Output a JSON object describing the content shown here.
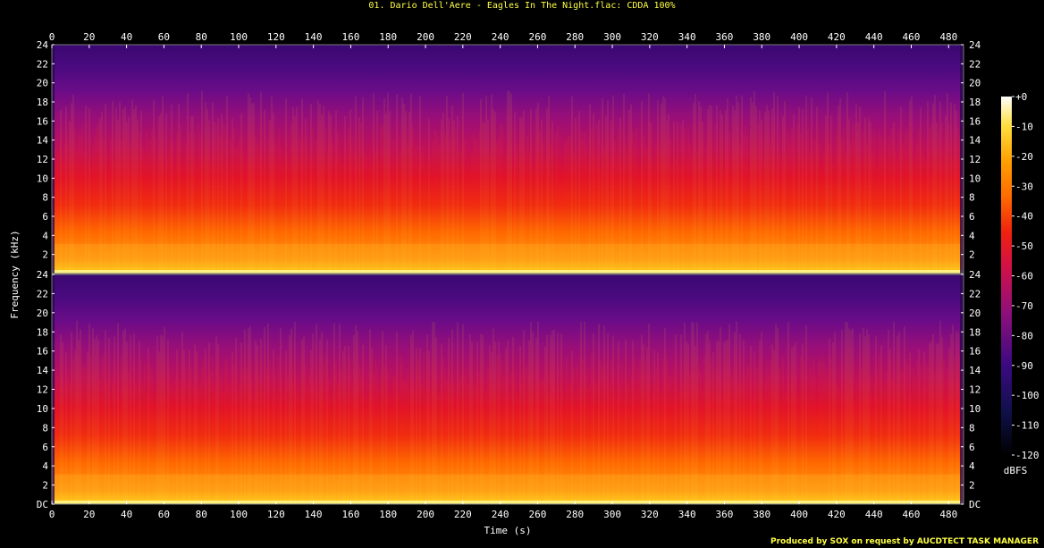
{
  "title": "01. Dario Dell'Aere - Eagles In The Night.flac: CDDA 100%",
  "footer": "Produced by SOX on request by AUCDTECT TASK MANAGER",
  "chart_data": {
    "type": "heatmap",
    "title": "01. Dario Dell'Aere - Eagles In The Night.flac: CDDA 100%",
    "xlabel": "Time (s)",
    "ylabel": "Frequency (kHz)",
    "xlim": [
      0,
      488
    ],
    "ylim": [
      0,
      24
    ],
    "x_ticks": [
      0,
      20,
      40,
      60,
      80,
      100,
      120,
      140,
      160,
      180,
      200,
      220,
      240,
      260,
      280,
      300,
      320,
      340,
      360,
      380,
      400,
      420,
      440,
      460,
      480
    ],
    "y_ticks": [
      "DC",
      "2",
      "4",
      "6",
      "8",
      "10",
      "12",
      "14",
      "16",
      "18",
      "20",
      "22",
      "24"
    ],
    "channels": 2,
    "colorbar": {
      "label": "dBFS",
      "ticks": [
        "+0",
        "-10",
        "-20",
        "-30",
        "-40",
        "-50",
        "-60",
        "-70",
        "-80",
        "-90",
        "-100",
        "-110",
        "-120"
      ],
      "range": [
        -120,
        0
      ]
    },
    "colors": {
      "low": "#000000",
      "purple": "#4a0a7a",
      "magenta": "#a0107a",
      "red": "#e00020",
      "orange": "#ff7000",
      "yellow": "#ffd000",
      "high": "#ffffff"
    }
  }
}
